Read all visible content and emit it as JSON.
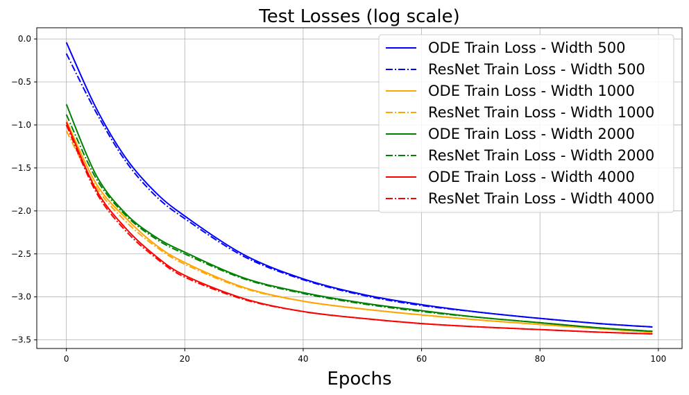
{
  "chart_data": {
    "type": "line",
    "title": "Test Losses (log scale)",
    "xlabel": "Epochs",
    "ylabel": "",
    "xlim": [
      -5,
      104
    ],
    "ylim": [
      -3.6,
      0.13
    ],
    "xticks": [
      0,
      20,
      40,
      60,
      80,
      100
    ],
    "yticks": [
      0.0,
      -0.5,
      -1.0,
      -1.5,
      -2.0,
      -2.5,
      -3.0,
      -3.5
    ],
    "xtick_labels": [
      "0",
      "20",
      "40",
      "60",
      "80",
      "100"
    ],
    "ytick_labels": [
      "0.0",
      "−0.5",
      "−1.0",
      "−1.5",
      "−2.0",
      "−2.5",
      "−3.0",
      "−3.5"
    ],
    "grid": true,
    "legend_position": "top-right",
    "series": [
      {
        "name": "ODE Train Loss - Width 500",
        "color": "#0000ff",
        "style": "solid",
        "x": [
          0,
          5,
          10,
          15,
          20,
          30,
          40,
          50,
          60,
          70,
          80,
          90,
          99
        ],
        "values": [
          -0.04,
          -0.8,
          -1.38,
          -1.78,
          -2.06,
          -2.51,
          -2.79,
          -2.97,
          -3.09,
          -3.18,
          -3.25,
          -3.31,
          -3.35
        ]
      },
      {
        "name": "ResNet Train Loss - Width 500",
        "color": "#0000ff",
        "style": "dashdot",
        "x": [
          0,
          5,
          10,
          15,
          20,
          30,
          40,
          50,
          60,
          70,
          80,
          90,
          99
        ],
        "values": [
          -0.17,
          -0.85,
          -1.42,
          -1.82,
          -2.09,
          -2.53,
          -2.8,
          -2.98,
          -3.1,
          -3.18,
          -3.25,
          -3.31,
          -3.35
        ]
      },
      {
        "name": "ODE Train Loss - Width 1000",
        "color": "#ffa500",
        "style": "solid",
        "x": [
          0,
          5,
          10,
          15,
          20,
          30,
          40,
          50,
          60,
          70,
          80,
          90,
          99
        ],
        "values": [
          -0.95,
          -1.68,
          -2.08,
          -2.39,
          -2.6,
          -2.89,
          -3.05,
          -3.14,
          -3.21,
          -3.27,
          -3.32,
          -3.37,
          -3.41
        ]
      },
      {
        "name": "ResNet Train Loss - Width 1000",
        "color": "#ffa500",
        "style": "dashdot",
        "x": [
          0,
          5,
          10,
          15,
          20,
          30,
          40,
          50,
          60,
          70,
          80,
          90,
          99
        ],
        "values": [
          -1.07,
          -1.72,
          -2.12,
          -2.41,
          -2.62,
          -2.9,
          -3.05,
          -3.14,
          -3.21,
          -3.27,
          -3.32,
          -3.37,
          -3.41
        ]
      },
      {
        "name": "ODE Train Loss - Width 2000",
        "color": "#008000",
        "style": "solid",
        "x": [
          0,
          5,
          10,
          15,
          20,
          30,
          40,
          50,
          60,
          70,
          80,
          90,
          99
        ],
        "values": [
          -0.76,
          -1.58,
          -2.03,
          -2.3,
          -2.48,
          -2.78,
          -2.95,
          -3.07,
          -3.16,
          -3.24,
          -3.3,
          -3.36,
          -3.4
        ]
      },
      {
        "name": "ResNet Train Loss - Width 2000",
        "color": "#008000",
        "style": "dashdot",
        "x": [
          0,
          5,
          10,
          15,
          20,
          30,
          40,
          50,
          60,
          70,
          80,
          90,
          99
        ],
        "values": [
          -0.88,
          -1.62,
          -2.05,
          -2.32,
          -2.5,
          -2.79,
          -2.96,
          -3.08,
          -3.17,
          -3.24,
          -3.3,
          -3.36,
          -3.4
        ]
      },
      {
        "name": "ODE Train Loss - Width 4000",
        "color": "#ff0000",
        "style": "solid",
        "x": [
          0,
          5,
          10,
          15,
          20,
          30,
          40,
          50,
          60,
          70,
          80,
          90,
          99
        ],
        "values": [
          -0.97,
          -1.75,
          -2.2,
          -2.52,
          -2.75,
          -3.02,
          -3.17,
          -3.25,
          -3.31,
          -3.35,
          -3.38,
          -3.41,
          -3.43
        ]
      },
      {
        "name": "ResNet Train Loss - Width 4000",
        "color": "#ff0000",
        "style": "dashdot",
        "x": [
          0,
          5,
          10,
          15,
          20,
          30,
          40,
          50,
          60,
          70,
          80,
          90,
          99
        ],
        "values": [
          -1.0,
          -1.78,
          -2.23,
          -2.54,
          -2.77,
          -3.03,
          -3.17,
          -3.25,
          -3.31,
          -3.35,
          -3.38,
          -3.41,
          -3.43
        ]
      }
    ]
  }
}
